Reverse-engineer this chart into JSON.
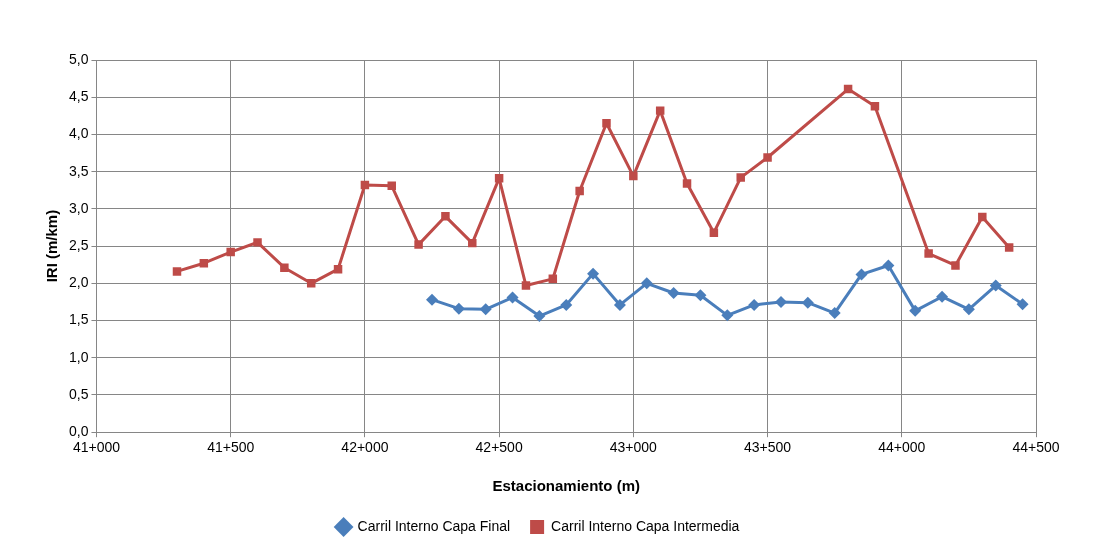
{
  "chart_data": {
    "type": "line",
    "xlabel": "Estacionamiento (m)",
    "ylabel": "IRI (m/km)",
    "categories": [
      "41+000",
      null,
      null,
      null,
      null,
      null,
      null,
      null,
      null,
      null,
      "41+500",
      null,
      null,
      null,
      null,
      null,
      null,
      null,
      null,
      null,
      "42+000",
      null,
      null,
      null,
      null,
      null,
      null,
      null,
      null,
      null,
      "42+500",
      null,
      null,
      null,
      null,
      null,
      null,
      null,
      null,
      null,
      "43+000",
      null,
      null,
      null,
      null,
      null,
      null,
      null,
      null,
      null,
      "43+500",
      null,
      null,
      null,
      null,
      null,
      null,
      null,
      null,
      null,
      "44+000",
      null,
      null,
      null,
      null,
      null,
      null,
      null,
      null,
      null,
      "44+500"
    ],
    "ylim": [
      0,
      5
    ],
    "yticks": [
      {
        "value": 0,
        "label": "0,0"
      },
      {
        "value": 0.5,
        "label": "0,5"
      },
      {
        "value": 1,
        "label": "1,0"
      },
      {
        "value": 1.5,
        "label": "1,5"
      },
      {
        "value": 2,
        "label": "2,0"
      },
      {
        "value": 2.5,
        "label": "2,5"
      },
      {
        "value": 3,
        "label": "3,0"
      },
      {
        "value": 3.5,
        "label": "3,5"
      },
      {
        "value": 4,
        "label": "4,0"
      },
      {
        "value": 4.5,
        "label": "4,5"
      },
      {
        "value": 5,
        "label": "5,0"
      }
    ],
    "grid": true,
    "legend": "bottom",
    "line_style": "solid",
    "series": [
      {
        "name": "Carril Interno Capa Final",
        "color": "#4a7ebb",
        "marker": "diamond",
        "values": [
          null,
          null,
          null,
          null,
          null,
          null,
          null,
          null,
          null,
          null,
          null,
          null,
          null,
          null,
          null,
          null,
          null,
          null,
          null,
          null,
          null,
          null,
          null,
          null,
          null,
          1.78,
          null,
          1.66,
          null,
          1.65,
          null,
          1.81,
          null,
          1.56,
          null,
          1.71,
          null,
          2.13,
          null,
          1.71,
          null,
          2.0,
          null,
          1.87,
          null,
          1.84,
          null,
          1.57,
          null,
          1.71,
          null,
          1.75,
          null,
          1.74,
          null,
          1.6,
          null,
          2.12,
          null,
          2.24,
          null,
          1.63,
          null,
          1.82,
          null,
          1.65,
          null,
          1.97,
          null,
          1.72,
          null
        ]
      },
      {
        "name": "Carril Interno Capa Intermedia",
        "color": "#be4b48",
        "marker": "square",
        "values": [
          null,
          null,
          null,
          null,
          null,
          null,
          2.16,
          null,
          2.27,
          null,
          2.42,
          null,
          2.55,
          null,
          2.21,
          null,
          2.0,
          null,
          2.19,
          null,
          3.32,
          null,
          3.31,
          null,
          2.52,
          null,
          2.9,
          null,
          2.54,
          null,
          3.41,
          null,
          1.97,
          null,
          2.06,
          null,
          3.24,
          null,
          4.15,
          null,
          3.44,
          null,
          4.32,
          null,
          3.34,
          null,
          2.68,
          null,
          3.42,
          null,
          3.69,
          null,
          null,
          null,
          null,
          null,
          4.61,
          null,
          4.38,
          null,
          null,
          null,
          2.4,
          null,
          2.24,
          null,
          2.89,
          null,
          2.48,
          null,
          null
        ]
      }
    ]
  }
}
